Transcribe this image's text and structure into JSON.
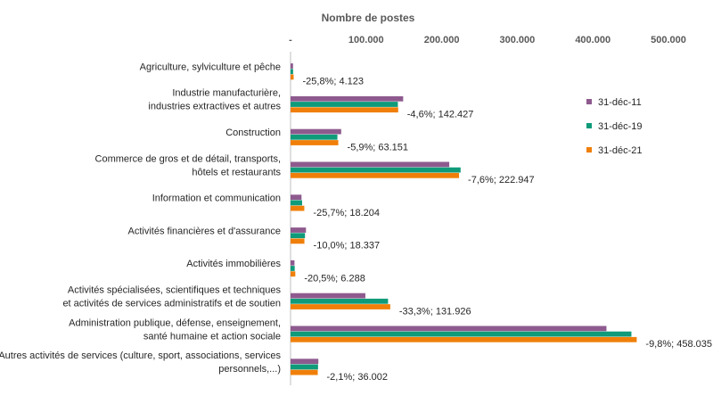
{
  "chart_data": {
    "type": "bar",
    "orientation": "horizontal",
    "xlabel": "Nombre de postes",
    "xlim": [
      0,
      500000
    ],
    "x_ticks": [
      "-",
      "100.000",
      "200.000",
      "300.000",
      "400.000",
      "500.000"
    ],
    "grid": false,
    "legend_position": "right",
    "categories": [
      [
        "Agriculture, sylviculture et pêche"
      ],
      [
        "Industrie manufacturière,",
        "industries extractives et autres"
      ],
      [
        "Construction"
      ],
      [
        "Commerce de gros et de détail, transports,",
        "hôtels et restaurants"
      ],
      [
        "Information et communication"
      ],
      [
        "Activités financières et d'assurance"
      ],
      [
        "Activités immobilières"
      ],
      [
        "Activités spécialisées, scientifiques et techniques",
        "et activités de services administratifs et de soutien"
      ],
      [
        "Administration publique, défense, enseignement,",
        "santé humaine et action sociale"
      ],
      [
        "Autres activités de services (culture, sport, associations, services",
        "personnels,...)"
      ]
    ],
    "series": [
      {
        "name": "31-déc-11",
        "color": "#8e5a8e",
        "values": [
          3300,
          149000,
          67000,
          210000,
          14500,
          20400,
          5200,
          99000,
          418000,
          36800
        ]
      },
      {
        "name": "31-déc-19",
        "color": "#0f9b7a",
        "values": [
          3400,
          142000,
          62000,
          225000,
          15300,
          19100,
          5500,
          129000,
          451000,
          36400
        ]
      },
      {
        "name": "31-déc-21",
        "color": "#f07f09",
        "values": [
          4123,
          142427,
          63151,
          222947,
          18204,
          18337,
          6288,
          131926,
          458035,
          36002
        ]
      }
    ],
    "data_labels": [
      "-25,8%; 4.123",
      "-4,6%; 142.427",
      "-5,9%; 63.151",
      "-7,6%; 222.947",
      "-25,7%; 18.204",
      "-10,0%; 18.337",
      "-20,5%; 6.288",
      "-33,3%; 131.926",
      "-9,8%; 458.035",
      "-2,1%; 36.002"
    ]
  }
}
